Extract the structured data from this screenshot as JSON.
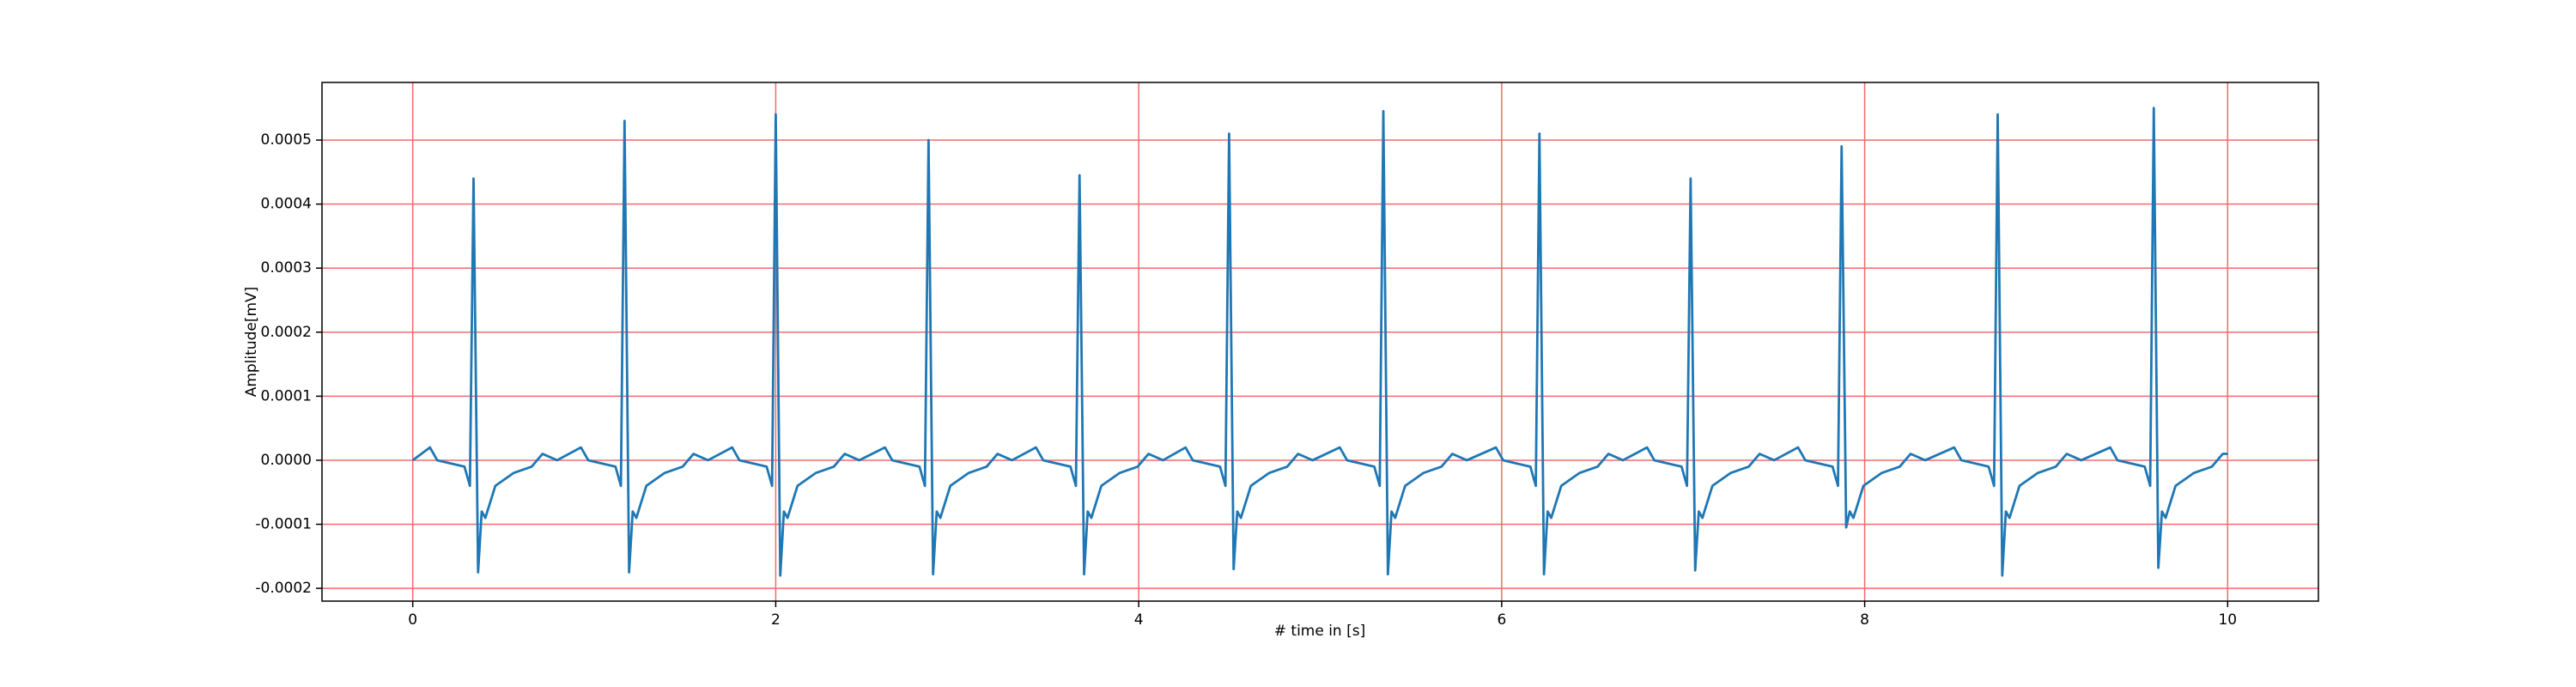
{
  "chart_data": {
    "type": "line",
    "xlabel": "# time in [s]",
    "ylabel": "Amplitude[mV]",
    "xlim": [
      -0.5,
      10.5
    ],
    "xticks": [
      0,
      2,
      4,
      6,
      8,
      10
    ],
    "ylim": [
      -0.00022,
      0.00059
    ],
    "yticks": [
      -0.0002,
      -0.0001,
      {
        "value": 0,
        "label": "0.0000"
      },
      0.0001,
      0.0002,
      0.0003,
      0.0004,
      0.0005
    ],
    "grid": true,
    "grid_color": "#f26b6b",
    "series": [
      {
        "color": "#1f77b4",
        "x": [
          0,
          0.095,
          0.135,
          0.285,
          0.315,
          0.335,
          0.36,
          0.38,
          0.4,
          0.455,
          0.555,
          0.655,
          0.715,
          0.795,
          0.927,
          0.967,
          1.117,
          1.147,
          1.167,
          1.192,
          1.212,
          1.232,
          1.287,
          1.387,
          1.487,
          1.547,
          1.627,
          1.76,
          1.8,
          1.95,
          1.98,
          2.0,
          2.025,
          2.045,
          2.065,
          2.12,
          2.22,
          2.32,
          2.38,
          2.46,
          2.602,
          2.642,
          2.792,
          2.822,
          2.842,
          2.867,
          2.887,
          2.907,
          2.962,
          3.062,
          3.162,
          3.222,
          3.302,
          3.434,
          3.474,
          3.624,
          3.654,
          3.674,
          3.699,
          3.719,
          3.739,
          3.794,
          3.894,
          3.994,
          4.054,
          4.134,
          4.258,
          4.298,
          4.448,
          4.478,
          4.498,
          4.523,
          4.543,
          4.563,
          4.618,
          4.718,
          4.818,
          4.878,
          4.958,
          5.108,
          5.148,
          5.298,
          5.328,
          5.348,
          5.373,
          5.393,
          5.413,
          5.468,
          5.568,
          5.668,
          5.728,
          5.808,
          5.968,
          6.008,
          6.158,
          6.188,
          6.208,
          6.233,
          6.253,
          6.273,
          6.328,
          6.428,
          6.528,
          6.588,
          6.668,
          6.801,
          6.841,
          6.991,
          7.021,
          7.041,
          7.066,
          7.086,
          7.106,
          7.161,
          7.261,
          7.361,
          7.421,
          7.501,
          7.633,
          7.673,
          7.823,
          7.853,
          7.873,
          7.898,
          7.918,
          7.938,
          7.993,
          8.093,
          8.193,
          8.253,
          8.333,
          8.493,
          8.533,
          8.683,
          8.713,
          8.733,
          8.758,
          8.778,
          8.798,
          8.853,
          8.953,
          9.053,
          9.113,
          9.193,
          9.353,
          9.393,
          9.543,
          9.573,
          9.593,
          9.618,
          9.638,
          9.658,
          9.713,
          9.813,
          9.913,
          9.973,
          10.0
        ],
        "values": [
          0,
          2e-05,
          0,
          -1e-05,
          -4e-05,
          0.00044,
          -0.000175,
          -8e-05,
          -9e-05,
          -4e-05,
          -2e-05,
          -1e-05,
          1e-05,
          0,
          2e-05,
          0,
          -1e-05,
          -4e-05,
          0.00053,
          -0.000175,
          -8e-05,
          -9e-05,
          -4e-05,
          -2e-05,
          -1e-05,
          1e-05,
          0,
          2e-05,
          0,
          -1e-05,
          -4e-05,
          0.00054,
          -0.00018,
          -8e-05,
          -9e-05,
          -4e-05,
          -2e-05,
          -1e-05,
          1e-05,
          0,
          2e-05,
          0,
          -1e-05,
          -4e-05,
          0.0005,
          -0.000178,
          -8e-05,
          -9e-05,
          -4e-05,
          -2e-05,
          -1e-05,
          1e-05,
          0,
          2e-05,
          0,
          -1e-05,
          -4e-05,
          0.000445,
          -0.000178,
          -8e-05,
          -9e-05,
          -4e-05,
          -2e-05,
          -1e-05,
          1e-05,
          0,
          2e-05,
          0,
          -1e-05,
          -4e-05,
          0.00051,
          -0.00017,
          -8e-05,
          -9e-05,
          -4e-05,
          -2e-05,
          -1e-05,
          1e-05,
          0,
          2e-05,
          0,
          -1e-05,
          -4e-05,
          0.000545,
          -0.000178,
          -8e-05,
          -9e-05,
          -4e-05,
          -2e-05,
          -1e-05,
          1e-05,
          0,
          2e-05,
          0,
          -1e-05,
          -4e-05,
          0.00051,
          -0.000178,
          -8e-05,
          -9e-05,
          -4e-05,
          -2e-05,
          -1e-05,
          1e-05,
          0,
          2e-05,
          0,
          -1e-05,
          -4e-05,
          0.00044,
          -0.000172,
          -8e-05,
          -9e-05,
          -4e-05,
          -2e-05,
          -1e-05,
          1e-05,
          0,
          2e-05,
          0,
          -1e-05,
          -4e-05,
          0.00049,
          -0.000105,
          -8e-05,
          -9e-05,
          -4e-05,
          -2e-05,
          -1e-05,
          1e-05,
          0,
          2e-05,
          0,
          -1e-05,
          -4e-05,
          0.00054,
          -0.00018,
          -8e-05,
          -9e-05,
          -4e-05,
          -2e-05,
          -1e-05,
          1e-05,
          0,
          2e-05,
          0,
          -1e-05,
          -4e-05,
          0.00055,
          -0.000168,
          -8e-05,
          -9e-05,
          -4e-05,
          -2e-05,
          -1e-05,
          1e-05,
          1e-05
        ]
      }
    ]
  }
}
